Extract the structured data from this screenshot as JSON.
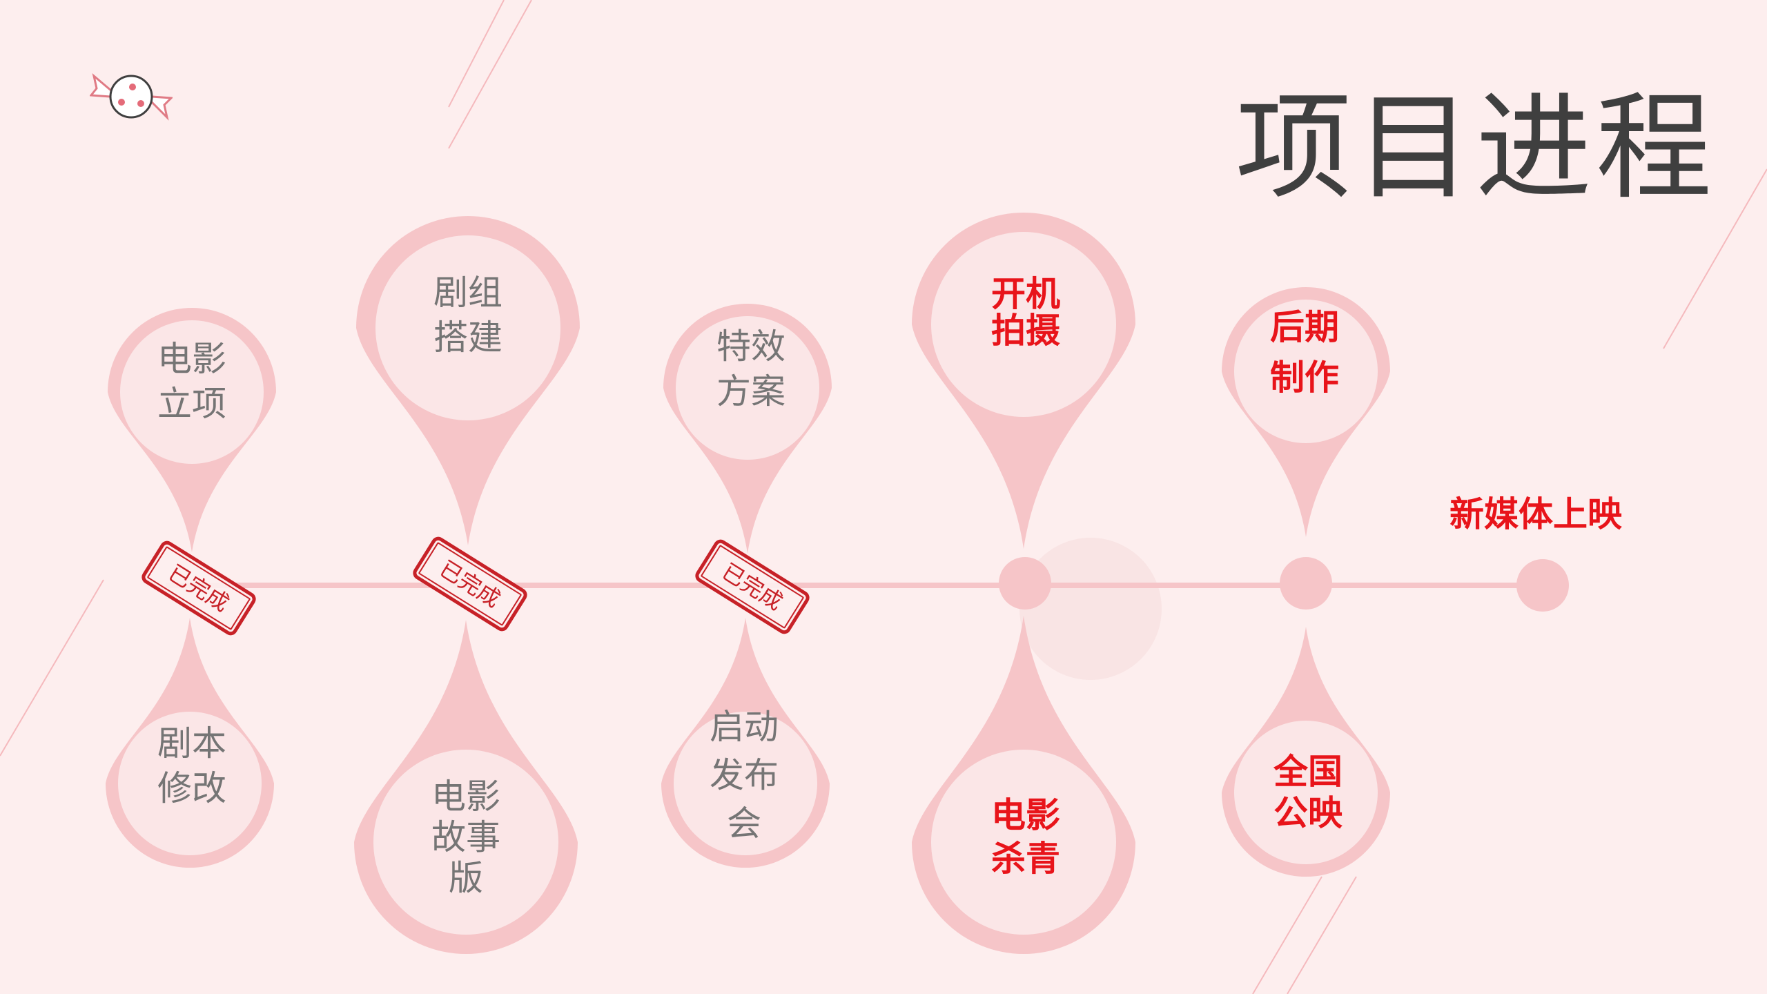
{
  "title": "项目进程",
  "milestones_top": [
    {
      "lines": [
        "电影",
        "立项"
      ],
      "status": "done"
    },
    {
      "lines": [
        "剧组",
        "搭建"
      ],
      "status": "done"
    },
    {
      "lines": [
        "特效",
        "方案"
      ],
      "status": "done"
    },
    {
      "lines": [
        "开机",
        "拍摄"
      ],
      "status": "todo"
    },
    {
      "lines": [
        "后期",
        "制作"
      ],
      "status": "todo"
    }
  ],
  "milestones_bottom": [
    {
      "lines": [
        "剧本",
        "修改"
      ],
      "status": "done"
    },
    {
      "lines": [
        "电影",
        "故事",
        "版"
      ],
      "status": "done"
    },
    {
      "lines": [
        "启动",
        "发布",
        "会"
      ],
      "status": "done"
    },
    {
      "lines": [
        "电影",
        "杀青"
      ],
      "status": "todo"
    },
    {
      "lines": [
        "全国",
        "公映"
      ],
      "status": "todo"
    }
  ],
  "final_milestone": "新媒体上映",
  "stamp_text": "已完成",
  "colors": {
    "background": "#fdeeee",
    "pin": "#f6c5c8",
    "pin_inner": "#fbe6e7",
    "done_text": "#757575",
    "todo_text": "#e8141a",
    "stamp": "#c72127",
    "title": "#3f3f3f"
  },
  "icons": [
    "candy-icon"
  ]
}
